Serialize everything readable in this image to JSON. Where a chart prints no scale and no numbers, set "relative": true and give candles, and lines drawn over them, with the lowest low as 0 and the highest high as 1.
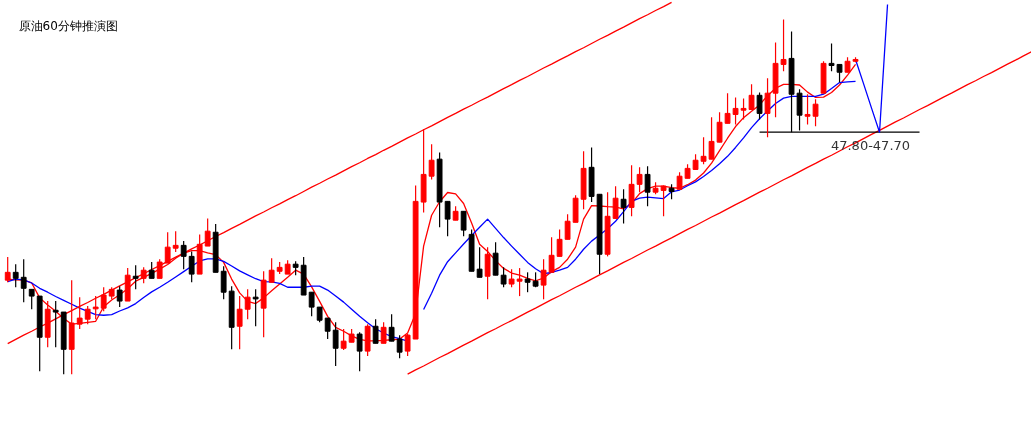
{
  "chart_data": {
    "type": "candlestick",
    "title": "原油60分钟推演图",
    "relative": true,
    "grid": false,
    "categories": [
      null,
      null,
      null,
      null,
      null,
      null,
      null,
      null,
      null,
      null,
      null,
      null,
      null,
      null,
      null,
      null,
      null,
      null,
      null,
      null,
      null,
      null,
      null,
      null,
      null,
      null,
      null,
      null,
      null,
      null,
      null,
      null,
      null,
      null,
      null,
      null,
      null,
      null,
      null,
      null,
      null,
      null,
      null,
      null,
      null,
      null,
      null,
      null,
      null,
      null,
      null,
      null,
      null,
      null,
      null,
      null,
      null,
      null,
      null,
      null,
      null,
      null,
      null,
      null,
      null,
      null,
      null,
      null,
      null,
      null,
      null,
      null,
      null,
      null,
      null,
      null,
      null,
      null,
      null,
      null,
      null,
      null,
      null,
      null,
      null,
      null,
      null,
      null,
      null,
      null,
      null,
      null,
      null,
      null,
      null,
      null,
      null,
      null,
      null,
      null,
      null,
      null,
      null,
      null,
      null,
      null,
      null,
      null,
      null,
      null,
      null,
      null,
      null,
      null,
      null,
      null,
      null,
      null,
      null,
      null,
      null,
      null,
      null,
      null,
      null,
      null,
      null,
      null,
      null
    ],
    "ohlc": [
      [
        0.265,
        0.33,
        0.259,
        0.287
      ],
      [
        0.287,
        0.31,
        0.245,
        0.27
      ],
      [
        0.273,
        0.324,
        0.203,
        0.242
      ],
      [
        0.239,
        0.239,
        0.183,
        0.22
      ],
      [
        0.22,
        0.22,
        0.008,
        0.104
      ],
      [
        0.104,
        0.206,
        0.076,
        0.183
      ],
      [
        0.18,
        0.206,
        0.076,
        0.175
      ],
      [
        0.175,
        0.175,
        0,
        0.07
      ],
      [
        0.07,
        0.265,
        0,
        0.144
      ],
      [
        0.141,
        0.217,
        0.127,
        0.158
      ],
      [
        0.155,
        0.192,
        0.141,
        0.183
      ],
      [
        0.186,
        0.22,
        0.155,
        0.189
      ],
      [
        0.186,
        0.245,
        0.177,
        0.223
      ],
      [
        0.22,
        0.245,
        0.211,
        0.239
      ],
      [
        0.237,
        0.248,
        0.189,
        0.206
      ],
      [
        0.206,
        0.299,
        0.206,
        0.279
      ],
      [
        0.276,
        0.307,
        0.239,
        0.27
      ],
      [
        0.27,
        0.301,
        0.256,
        0.293
      ],
      [
        0.293,
        0.316,
        0.27,
        0.27
      ],
      [
        0.27,
        0.324,
        0.27,
        0.316
      ],
      [
        0.313,
        0.4,
        0.313,
        0.358
      ],
      [
        0.355,
        0.403,
        0.344,
        0.363
      ],
      [
        0.363,
        0.375,
        0.296,
        0.332
      ],
      [
        0.332,
        0.346,
        0.259,
        0.282
      ],
      [
        0.282,
        0.394,
        0.282,
        0.366
      ],
      [
        0.361,
        0.439,
        0.361,
        0.403
      ],
      [
        0.4,
        0.423,
        0.287,
        0.287
      ],
      [
        0.29,
        0.304,
        0.211,
        0.231
      ],
      [
        0.234,
        0.248,
        0.07,
        0.132
      ],
      [
        0.135,
        0.22,
        0.07,
        0.183
      ],
      [
        0.183,
        0.239,
        0.155,
        0.217
      ],
      [
        0.217,
        0.239,
        0.135,
        0.214
      ],
      [
        0.186,
        0.29,
        0.104,
        0.265
      ],
      [
        0.259,
        0.327,
        0.259,
        0.293
      ],
      [
        0.29,
        0.316,
        0.282,
        0.301
      ],
      [
        0.282,
        0.321,
        0.282,
        0.31
      ],
      [
        0.31,
        0.318,
        0.279,
        0.301
      ],
      [
        0.307,
        0.33,
        0.223,
        0.223
      ],
      [
        0.231,
        0.231,
        0.163,
        0.189
      ],
      [
        0.189,
        0.189,
        0.146,
        0.152
      ],
      [
        0.158,
        0.158,
        0.099,
        0.121
      ],
      [
        0.124,
        0.146,
        0.023,
        0.073
      ],
      [
        0.073,
        0.127,
        0.068,
        0.093
      ],
      [
        0.09,
        0.127,
        0.09,
        0.113
      ],
      [
        0.113,
        0.118,
        0.008,
        0.065
      ],
      [
        0.065,
        0.141,
        0.051,
        0.135
      ],
      [
        0.135,
        0.155,
        0.087,
        0.087
      ],
      [
        0.087,
        0.146,
        0.087,
        0.132
      ],
      [
        0.132,
        0.169,
        0.093,
        0.093
      ],
      [
        0.099,
        0.11,
        0.045,
        0.062
      ],
      [
        0.065,
        0.113,
        0.051,
        0.11
      ],
      [
        0.099,
        0.532,
        0.099,
        0.487
      ],
      [
        0.485,
        0.69,
        0.456,
        0.563
      ],
      [
        0.558,
        0.648,
        0.549,
        0.603
      ],
      [
        0.606,
        0.625,
        0.414,
        0.485
      ],
      [
        0.487,
        0.487,
        0.389,
        0.437
      ],
      [
        0.434,
        0.473,
        0.434,
        0.459
      ],
      [
        0.459,
        0.459,
        0.389,
        0.406
      ],
      [
        0.394,
        0.408,
        0.29,
        0.29
      ],
      [
        0.296,
        0.358,
        0.273,
        0.273
      ],
      [
        0.276,
        0.358,
        0.211,
        0.338
      ],
      [
        0.341,
        0.372,
        0.279,
        0.279
      ],
      [
        0.279,
        0.301,
        0.245,
        0.254
      ],
      [
        0.254,
        0.296,
        0.245,
        0.268
      ],
      [
        0.262,
        0.299,
        0.22,
        0.268
      ],
      [
        0.268,
        0.287,
        0.231,
        0.259
      ],
      [
        0.262,
        0.287,
        0.245,
        0.248
      ],
      [
        0.251,
        0.324,
        0.211,
        0.293
      ],
      [
        0.287,
        0.386,
        0.287,
        0.335
      ],
      [
        0.332,
        0.408,
        0.332,
        0.38
      ],
      [
        0.38,
        0.451,
        0.38,
        0.431
      ],
      [
        0.428,
        0.504,
        0.428,
        0.496
      ],
      [
        0.493,
        0.628,
        0.465,
        0.58
      ],
      [
        0.583,
        0.639,
        0.485,
        0.501
      ],
      [
        0.507,
        0.507,
        0.282,
        0.338
      ],
      [
        0.338,
        0.513,
        0.332,
        0.445
      ],
      [
        0.439,
        0.53,
        0.439,
        0.496
      ],
      [
        0.493,
        0.521,
        0.425,
        0.47
      ],
      [
        0.47,
        0.589,
        0.445,
        0.535
      ],
      [
        0.535,
        0.583,
        0.513,
        0.563
      ],
      [
        0.563,
        0.586,
        0.473,
        0.513
      ],
      [
        0.513,
        0.541,
        0.507,
        0.524
      ],
      [
        0.518,
        0.532,
        0.445,
        0.53
      ],
      [
        0.524,
        0.535,
        0.493,
        0.515
      ],
      [
        0.521,
        0.569,
        0.521,
        0.558
      ],
      [
        0.552,
        0.592,
        0.552,
        0.58
      ],
      [
        0.577,
        0.62,
        0.577,
        0.603
      ],
      [
        0.6,
        0.668,
        0.592,
        0.614
      ],
      [
        0.606,
        0.724,
        0.606,
        0.656
      ],
      [
        0.654,
        0.738,
        0.654,
        0.71
      ],
      [
        0.707,
        0.792,
        0.707,
        0.735
      ],
      [
        0.732,
        0.78,
        0.704,
        0.749
      ],
      [
        0.746,
        0.777,
        0.718,
        0.749
      ],
      [
        0.746,
        0.817,
        0.746,
        0.786
      ],
      [
        0.786,
        0.794,
        0.718,
        0.735
      ],
      [
        0.735,
        0.834,
        0.668,
        0.792
      ],
      [
        0.792,
        0.935,
        0.724,
        0.876
      ],
      [
        0.873,
        1.0,
        0.854,
        0.887
      ],
      [
        0.89,
        0.966,
        0.682,
        0.789
      ],
      [
        0.792,
        0.803,
        0.687,
        0.73
      ],
      [
        0.727,
        0.789,
        0.704,
        0.732
      ],
      [
        0.727,
        0.775,
        0.699,
        0.761
      ],
      [
        0.792,
        0.882,
        0.792,
        0.876
      ],
      [
        0.876,
        0.932,
        0.854,
        0.87
      ],
      [
        0.873,
        0.873,
        0.823,
        0.851
      ],
      [
        0.851,
        0.893,
        0.851,
        0.882
      ],
      [
        0.882,
        0.893,
        0.879,
        0.887
      ],
      null,
      null,
      null,
      null,
      null,
      null,
      null,
      null,
      null,
      null,
      null,
      null,
      null,
      null,
      null,
      null,
      null,
      null,
      null,
      null,
      null,
      null
    ],
    "colors": [
      "#ff0000",
      "#000000",
      "#000000",
      "#000000",
      "#000000",
      "#ff0000",
      "#000000",
      "#000000",
      "#ff0000",
      "#ff0000",
      "#ff0000",
      "#ff0000",
      "#ff0000",
      "#ff0000",
      "#000000",
      "#ff0000",
      "#000000",
      "#ff0000",
      "#000000",
      "#ff0000",
      "#ff0000",
      "#ff0000",
      "#000000",
      "#000000",
      "#ff0000",
      "#ff0000",
      "#000000",
      "#000000",
      "#000000",
      "#ff0000",
      "#ff0000",
      "#000000",
      "#ff0000",
      "#ff0000",
      "#ff0000",
      "#ff0000",
      "#000000",
      "#000000",
      "#000000",
      "#000000",
      "#000000",
      "#000000",
      "#ff0000",
      "#ff0000",
      "#000000",
      "#ff0000",
      "#000000",
      "#ff0000",
      "#000000",
      "#000000",
      "#ff0000",
      "#ff0000",
      "#ff0000",
      "#ff0000",
      "#000000",
      "#000000",
      "#ff0000",
      "#000000",
      "#000000",
      "#000000",
      "#ff0000",
      "#000000",
      "#000000",
      "#ff0000",
      "#ff0000",
      "#000000",
      "#000000",
      "#ff0000",
      "#ff0000",
      "#ff0000",
      "#ff0000",
      "#ff0000",
      "#ff0000",
      "#000000",
      "#000000",
      "#ff0000",
      "#ff0000",
      "#000000",
      "#ff0000",
      "#ff0000",
      "#000000",
      "#ff0000",
      "#ff0000",
      "#000000",
      "#ff0000",
      "#ff0000",
      "#ff0000",
      "#ff0000",
      "#ff0000",
      "#ff0000",
      "#ff0000",
      "#ff0000",
      "#ff0000",
      "#ff0000",
      "#000000",
      "#ff0000",
      "#ff0000",
      "#ff0000",
      "#000000",
      "#000000",
      "#ff0000",
      "#ff0000",
      "#ff0000",
      "#000000",
      "#000000",
      "#ff0000",
      "#ff0000",
      null,
      null,
      null,
      null,
      null,
      null,
      null,
      null,
      null,
      null,
      null,
      null,
      null,
      null,
      null,
      null,
      null,
      null,
      null,
      null,
      null,
      null
    ],
    "series": [
      {
        "type": "line",
        "color": "#ff0000",
        "values": [
          0.268,
          0.266,
          0.265,
          0.257,
          0.215,
          0.195,
          0.177,
          0.157,
          0.141,
          0.143,
          0.146,
          0.149,
          0.19,
          0.209,
          0.224,
          0.241,
          0.262,
          0.273,
          0.284,
          0.296,
          0.309,
          0.327,
          0.341,
          0.348,
          0.348,
          0.342,
          0.337,
          0.315,
          0.268,
          0.229,
          0.205,
          0.199,
          0.215,
          0.235,
          0.254,
          0.273,
          0.293,
          0.282,
          0.246,
          0.205,
          0.163,
          0.132,
          0.121,
          0.108,
          0.098,
          0.094,
          0.094,
          0.095,
          0.097,
          0.099,
          0.116,
          0.171,
          0.361,
          0.448,
          0.486,
          0.512,
          0.508,
          0.481,
          0.426,
          0.366,
          0.346,
          0.32,
          0.298,
          0.285,
          0.279,
          0.27,
          0.263,
          0.271,
          0.289,
          0.301,
          0.324,
          0.358,
          0.437,
          0.475,
          0.474,
          0.472,
          0.471,
          0.466,
          0.481,
          0.509,
          0.523,
          0.53,
          0.53,
          0.526,
          0.524,
          0.534,
          0.547,
          0.567,
          0.595,
          0.63,
          0.665,
          0.698,
          0.723,
          0.741,
          0.759,
          0.785,
          0.806,
          0.817,
          0.817,
          0.815,
          0.795,
          0.78,
          0.781,
          0.794,
          0.815,
          0.843,
          0.873,
          null,
          null,
          null,
          null,
          null,
          null,
          null,
          null,
          null,
          null,
          null,
          null,
          null,
          null,
          null,
          null,
          null,
          null,
          null,
          null,
          null,
          null
        ]
      },
      {
        "type": "line",
        "color": "#0000ff",
        "values": [
          0.261,
          0.268,
          0.266,
          0.257,
          0.242,
          0.231,
          0.219,
          0.208,
          0.197,
          0.186,
          0.177,
          0.168,
          0.166,
          0.168,
          0.178,
          0.187,
          0.199,
          0.216,
          0.232,
          0.245,
          0.259,
          0.274,
          0.289,
          0.304,
          0.319,
          0.325,
          0.325,
          0.318,
          0.305,
          0.291,
          0.28,
          0.269,
          0.261,
          0.26,
          0.256,
          0.245,
          0.245,
          0.245,
          0.248,
          0.248,
          0.237,
          0.22,
          0.203,
          0.183,
          0.163,
          0.145,
          0.128,
          0.116,
          0.106,
          0.1,
          0.093,
          null,
          0.182,
          0.228,
          0.279,
          0.317,
          0.342,
          0.367,
          0.391,
          0.414,
          0.437,
          0.411,
          0.385,
          0.361,
          0.338,
          0.315,
          0.297,
          0.283,
          0.287,
          0.293,
          0.301,
          0.324,
          0.352,
          0.375,
          0.392,
          0.41,
          0.431,
          0.458,
          0.487,
          0.496,
          0.499,
          0.497,
          0.495,
          0.514,
          0.519,
          0.531,
          0.542,
          0.557,
          0.574,
          0.593,
          0.614,
          0.639,
          0.666,
          0.695,
          0.72,
          0.742,
          0.763,
          0.778,
          0.783,
          0.783,
          0.783,
          0.783,
          0.789,
          0.805,
          0.822,
          0.824,
          0.825,
          null,
          null,
          null,
          null,
          null,
          null,
          null,
          null,
          null,
          null,
          null,
          null,
          null,
          null,
          null,
          null,
          null,
          null,
          null,
          null,
          null,
          null
        ]
      },
      {
        "type": "line",
        "color": "#ff0000",
        "values": [
          0.086,
          0.098,
          0.11,
          0.121,
          0.133,
          0.144,
          0.156,
          0.168,
          0.179,
          0.191,
          0.202,
          0.214,
          0.225,
          0.237,
          0.249,
          0.26,
          0.272,
          0.283,
          0.295,
          0.306,
          0.318,
          0.33,
          0.341,
          0.353,
          0.364,
          0.376,
          0.388,
          0.399,
          0.411,
          0.422,
          0.434,
          0.446,
          0.457,
          0.469,
          0.48,
          0.492,
          0.503,
          0.515,
          0.527,
          0.538,
          0.55,
          0.561,
          0.573,
          0.585,
          0.596,
          0.608,
          0.619,
          0.631,
          0.642,
          0.654,
          0.666,
          0.677,
          0.689,
          0.7,
          0.712,
          0.724,
          0.735,
          0.747,
          0.758,
          0.77,
          0.781,
          0.793,
          0.805,
          0.816,
          0.828,
          0.839,
          0.851,
          0.863,
          0.874,
          0.886,
          0.897,
          0.909,
          0.92,
          0.932,
          0.944,
          0.955,
          0.967,
          0.978,
          0.99,
          1.002,
          1.013,
          1.025,
          1.036,
          1.048,
          null,
          null,
          null,
          null,
          null,
          null,
          null,
          null,
          null,
          null,
          null,
          null,
          null,
          null,
          null,
          null,
          null,
          null,
          null,
          null,
          null,
          null,
          null,
          null,
          null,
          null,
          null,
          null,
          null,
          null,
          null,
          null,
          null,
          null,
          null,
          null,
          null,
          null,
          null,
          null,
          null,
          null,
          null,
          null,
          null
        ]
      },
      {
        "type": "line",
        "color": "#ff0000",
        "values": [
          null,
          null,
          null,
          null,
          null,
          null,
          null,
          null,
          null,
          null,
          null,
          null,
          null,
          null,
          null,
          null,
          null,
          null,
          null,
          null,
          null,
          null,
          null,
          null,
          null,
          null,
          null,
          null,
          null,
          null,
          null,
          null,
          null,
          null,
          null,
          null,
          null,
          null,
          null,
          null,
          null,
          null,
          null,
          null,
          null,
          null,
          null,
          null,
          null,
          null,
          0,
          0.012,
          0.023,
          0.035,
          0.047,
          0.058,
          0.07,
          0.082,
          0.093,
          0.105,
          0.117,
          0.128,
          0.14,
          0.151,
          0.163,
          0.175,
          0.186,
          0.198,
          0.21,
          0.221,
          0.233,
          0.245,
          0.256,
          0.268,
          0.28,
          0.291,
          0.303,
          0.315,
          0.326,
          0.338,
          0.35,
          0.361,
          0.373,
          0.384,
          0.396,
          0.408,
          0.419,
          0.431,
          0.443,
          0.454,
          0.466,
          0.478,
          0.489,
          0.501,
          0.513,
          0.524,
          0.536,
          0.548,
          0.559,
          0.571,
          0.583,
          0.594,
          0.606,
          0.617,
          0.629,
          0.641,
          0.652,
          0.664,
          0.676,
          0.687,
          0.699,
          0.711,
          0.722,
          0.734,
          0.746,
          0.757,
          0.769,
          0.781,
          0.792,
          0.804,
          0.816,
          0.827,
          0.839,
          0.85,
          0.862,
          0.874,
          0.885,
          0.897,
          0.909
        ]
      },
      {
        "type": "line",
        "color": "#000000",
        "values": [
          null,
          null,
          null,
          null,
          null,
          null,
          null,
          null,
          null,
          null,
          null,
          null,
          null,
          null,
          null,
          null,
          null,
          null,
          null,
          null,
          null,
          null,
          null,
          null,
          null,
          null,
          null,
          null,
          null,
          null,
          null,
          null,
          null,
          null,
          null,
          null,
          null,
          null,
          null,
          null,
          null,
          null,
          null,
          null,
          null,
          null,
          null,
          null,
          null,
          null,
          null,
          null,
          null,
          null,
          null,
          null,
          null,
          null,
          null,
          null,
          null,
          null,
          null,
          null,
          null,
          null,
          null,
          null,
          null,
          null,
          null,
          null,
          null,
          null,
          null,
          null,
          null,
          null,
          null,
          null,
          null,
          null,
          null,
          null,
          null,
          null,
          null,
          null,
          null,
          null,
          null,
          null,
          null,
          null,
          0.682,
          0.682,
          0.682,
          0.682,
          0.682,
          0.682,
          0.682,
          0.682,
          0.682,
          0.682,
          0.682,
          0.682,
          0.682,
          0.682,
          0.682,
          0.682,
          0.682,
          0.682,
          0.682,
          0.682,
          0.682,
          null,
          null,
          null,
          null,
          null,
          null,
          null,
          null,
          null,
          null,
          null,
          null,
          null,
          null
        ]
      },
      {
        "type": "line",
        "color": "#0000ff",
        "values": [
          null,
          null,
          null,
          null,
          null,
          null,
          null,
          null,
          null,
          null,
          null,
          null,
          null,
          null,
          null,
          null,
          null,
          null,
          null,
          null,
          null,
          null,
          null,
          null,
          null,
          null,
          null,
          null,
          null,
          null,
          null,
          null,
          null,
          null,
          null,
          null,
          null,
          null,
          null,
          null,
          null,
          null,
          null,
          null,
          null,
          null,
          null,
          null,
          null,
          null,
          null,
          null,
          null,
          null,
          null,
          null,
          null,
          null,
          null,
          null,
          null,
          null,
          null,
          null,
          null,
          null,
          null,
          null,
          null,
          null,
          null,
          null,
          null,
          null,
          null,
          null,
          null,
          null,
          null,
          null,
          null,
          null,
          null,
          null,
          null,
          null,
          null,
          null,
          null,
          null,
          null,
          null,
          null,
          null,
          null,
          null,
          null,
          null,
          null,
          null,
          null,
          null,
          null,
          null,
          null,
          null,
          0.887,
          0.819,
          0.75,
          0.682,
          1.042,
          null,
          null,
          null,
          null,
          null,
          null,
          null,
          null,
          null,
          null,
          null,
          null,
          null,
          null,
          null,
          null,
          null,
          null
        ]
      }
    ],
    "annotations": [
      "47.80-47.70"
    ]
  }
}
